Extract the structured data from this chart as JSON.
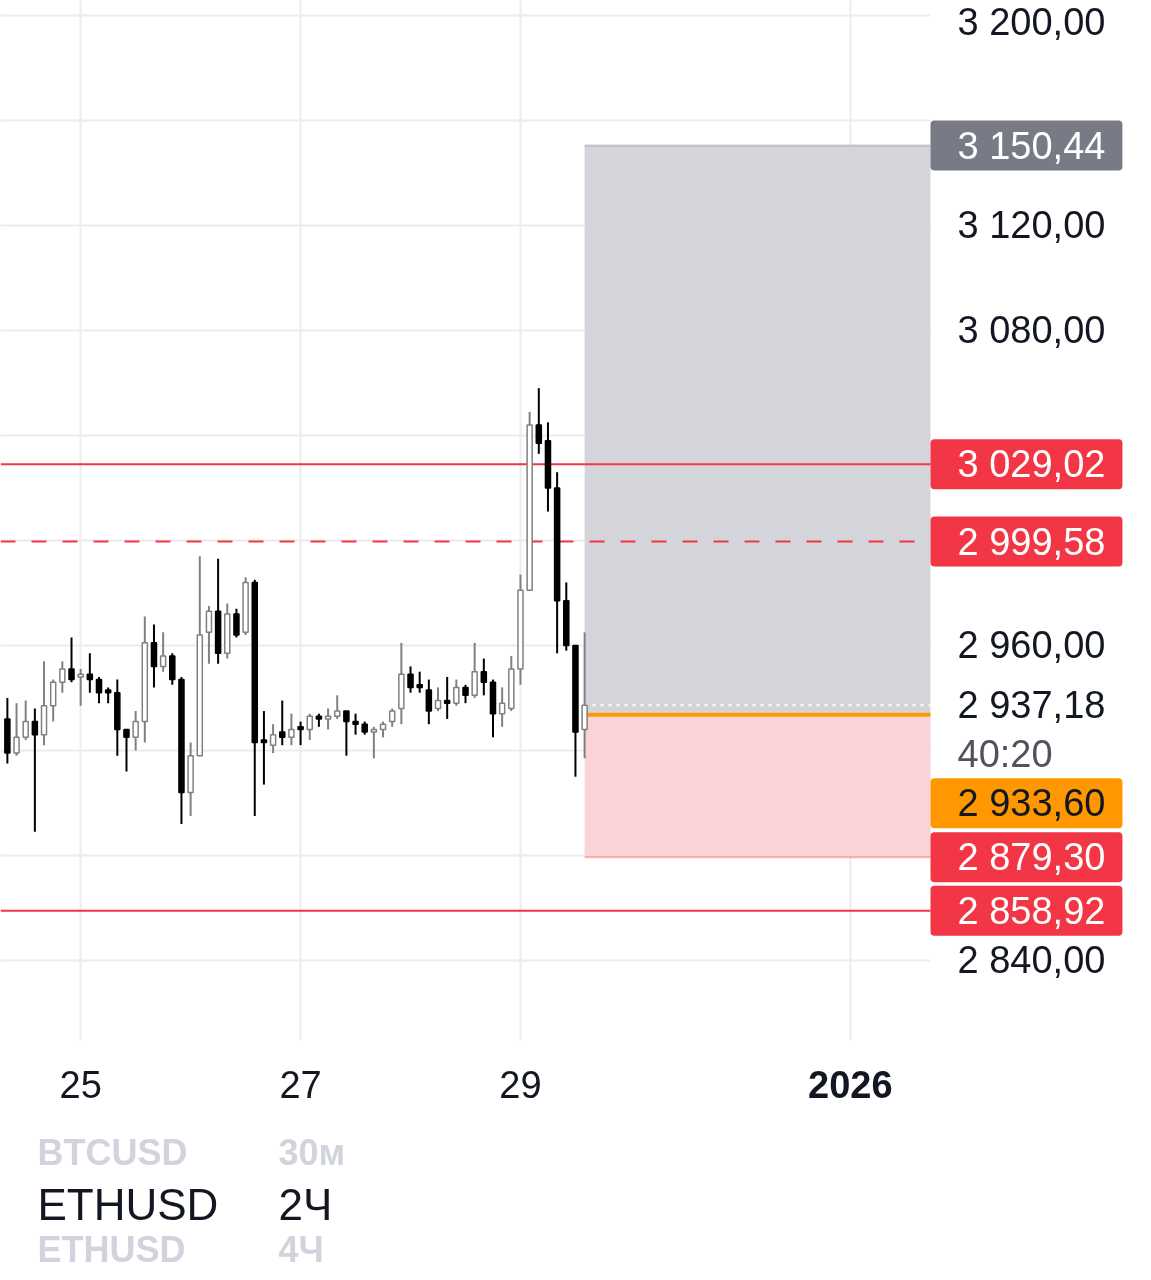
{
  "chart_data": {
    "type": "candlestick",
    "title": "ETHUSD",
    "subtitle": "2Ч",
    "xlim": [
      "2025-12-24T06:30",
      "2026-01-01T17:30"
    ],
    "ylim": [
      2809.5,
      3205.7
    ],
    "xticks": [
      {
        "value": "2025-12-25",
        "label": "25"
      },
      {
        "value": "2025-12-27",
        "label": "27"
      },
      {
        "value": "2025-12-29",
        "label": "29"
      },
      {
        "value": "2026-01-01",
        "label": "2026"
      }
    ],
    "yticks": [
      {
        "value": 3200,
        "label": "3 200,00"
      },
      {
        "value": 3160,
        "label": null
      },
      {
        "value": 3120,
        "label": "3 120,00"
      },
      {
        "value": 3080,
        "label": "3 080,00"
      },
      {
        "value": 3040,
        "label": null
      },
      {
        "value": 3000,
        "label": null
      },
      {
        "value": 2960,
        "label": "2 960,00"
      },
      {
        "value": 2920,
        "label": null
      },
      {
        "value": 2880,
        "label": null
      },
      {
        "value": 2840,
        "label": "2 840,00"
      }
    ],
    "grid": true,
    "x": [
      "2025-12-24T08:00",
      "2025-12-24T10:00",
      "2025-12-24T12:00",
      "2025-12-24T14:00",
      "2025-12-24T16:00",
      "2025-12-24T18:00",
      "2025-12-24T20:00",
      "2025-12-24T22:00",
      "2025-12-25T00:00",
      "2025-12-25T02:00",
      "2025-12-25T04:00",
      "2025-12-25T06:00",
      "2025-12-25T08:00",
      "2025-12-25T10:00",
      "2025-12-25T12:00",
      "2025-12-25T14:00",
      "2025-12-25T16:00",
      "2025-12-25T18:00",
      "2025-12-25T20:00",
      "2025-12-25T22:00",
      "2025-12-26T00:00",
      "2025-12-26T02:00",
      "2025-12-26T04:00",
      "2025-12-26T06:00",
      "2025-12-26T08:00",
      "2025-12-26T10:00",
      "2025-12-26T12:00",
      "2025-12-26T14:00",
      "2025-12-26T16:00",
      "2025-12-26T18:00",
      "2025-12-26T20:00",
      "2025-12-26T22:00",
      "2025-12-27T00:00",
      "2025-12-27T02:00",
      "2025-12-27T04:00",
      "2025-12-27T06:00",
      "2025-12-27T08:00",
      "2025-12-27T10:00",
      "2025-12-27T12:00",
      "2025-12-27T14:00",
      "2025-12-27T16:00",
      "2025-12-27T18:00",
      "2025-12-27T20:00",
      "2025-12-27T22:00",
      "2025-12-28T00:00",
      "2025-12-28T02:00",
      "2025-12-28T04:00",
      "2025-12-28T06:00",
      "2025-12-28T08:00",
      "2025-12-28T10:00",
      "2025-12-28T12:00",
      "2025-12-28T14:00",
      "2025-12-28T16:00",
      "2025-12-28T18:00",
      "2025-12-28T20:00",
      "2025-12-28T22:00",
      "2025-12-29T00:00",
      "2025-12-29T02:00",
      "2025-12-29T04:00",
      "2025-12-29T06:00",
      "2025-12-29T08:00",
      "2025-12-29T10:00",
      "2025-12-29T12:00",
      "2025-12-29T14:00"
    ],
    "ohlc": [
      [
        2932,
        2940,
        2915,
        2919
      ],
      [
        2919,
        2938,
        2918,
        2925
      ],
      [
        2925,
        2939,
        2924,
        2931
      ],
      [
        2931,
        2936,
        2889,
        2926
      ],
      [
        2926,
        2954,
        2922,
        2937
      ],
      [
        2937,
        2947,
        2931,
        2946
      ],
      [
        2946,
        2954,
        2942,
        2951
      ],
      [
        2951,
        2963,
        2946,
        2947
      ],
      [
        2948,
        2951,
        2937,
        2949
      ],
      [
        2949,
        2957,
        2942,
        2947
      ],
      [
        2947,
        2948,
        2938,
        2942
      ],
      [
        2943,
        2944,
        2938,
        2942
      ],
      [
        2942,
        2947,
        2918,
        2928
      ],
      [
        2928,
        2928,
        2912,
        2925
      ],
      [
        2925,
        2935,
        2920,
        2931
      ],
      [
        2931,
        2971,
        2923,
        2961
      ],
      [
        2961,
        2968,
        2944,
        2952
      ],
      [
        2952,
        2965,
        2950,
        2956
      ],
      [
        2956,
        2957,
        2945,
        2947
      ],
      [
        2947,
        2948,
        2892,
        2904
      ],
      [
        2904,
        2923,
        2895,
        2918
      ],
      [
        2918,
        2994,
        2918,
        2964
      ],
      [
        2965,
        2975,
        2953,
        2973
      ],
      [
        2973,
        2993,
        2953,
        2957
      ],
      [
        2957,
        2976,
        2955,
        2972
      ],
      [
        2972,
        2974,
        2963,
        2964
      ],
      [
        2965,
        2986,
        2964,
        2984
      ],
      [
        2984,
        2985,
        2895,
        2923
      ],
      [
        2924,
        2935,
        2907,
        2923
      ],
      [
        2922,
        2930,
        2919,
        2926
      ],
      [
        2927,
        2939,
        2922,
        2925
      ],
      [
        2925,
        2934,
        2922,
        2928
      ],
      [
        2929,
        2931,
        2922,
        2928
      ],
      [
        2928,
        2934,
        2924,
        2933
      ],
      [
        2933,
        2934,
        2929,
        2932
      ],
      [
        2932,
        2936,
        2928,
        2933
      ],
      [
        2933,
        2941,
        2932,
        2935
      ],
      [
        2935,
        2935,
        2918,
        2931
      ],
      [
        2931,
        2934,
        2926,
        2930
      ],
      [
        2930,
        2931,
        2926,
        2927
      ],
      [
        2927,
        2929,
        2917,
        2928
      ],
      [
        2928,
        2931,
        2925,
        2930
      ],
      [
        2931,
        2936,
        2929,
        2935
      ],
      [
        2936,
        2961,
        2930,
        2949
      ],
      [
        2949,
        2952,
        2942,
        2944
      ],
      [
        2945,
        2950,
        2942,
        2944
      ],
      [
        2943,
        2947,
        2930,
        2935
      ],
      [
        2936,
        2944,
        2935,
        2939
      ],
      [
        2939,
        2948,
        2932,
        2938
      ],
      [
        2938,
        2947,
        2937,
        2944
      ],
      [
        2944,
        2945,
        2938,
        2941
      ],
      [
        2941,
        2961,
        2940,
        2950
      ],
      [
        2950,
        2955,
        2941,
        2946
      ],
      [
        2946,
        2947,
        2925,
        2934
      ],
      [
        2934,
        2944,
        2929,
        2938
      ],
      [
        2936,
        2956,
        2935,
        2951
      ],
      [
        2951,
        2987,
        2945,
        2981
      ],
      [
        2981,
        3049,
        2981,
        3044
      ],
      [
        3044,
        3058,
        3033,
        3037
      ],
      [
        3038,
        3045,
        3011,
        3020
      ],
      [
        3020,
        3026,
        2957,
        2977
      ],
      [
        2977,
        2984,
        2958,
        2960
      ],
      [
        2960,
        2960,
        2910,
        2927
      ],
      [
        2928,
        2965,
        2917,
        2937.18
      ]
    ],
    "colors": [
      "#000000",
      "#808080",
      "#808080",
      "#000000",
      "#808080",
      "#808080",
      "#808080",
      "#000000",
      "#808080",
      "#000000",
      "#000000",
      "#000000",
      "#000000",
      "#000000",
      "#808080",
      "#808080",
      "#000000",
      "#808080",
      "#000000",
      "#000000",
      "#808080",
      "#808080",
      "#808080",
      "#000000",
      "#808080",
      "#000000",
      "#808080",
      "#000000",
      "#000000",
      "#808080",
      "#000000",
      "#808080",
      "#000000",
      "#808080",
      "#000000",
      "#808080",
      "#808080",
      "#000000",
      "#000000",
      "#000000",
      "#808080",
      "#808080",
      "#808080",
      "#808080",
      "#000000",
      "#000000",
      "#000000",
      "#808080",
      "#000000",
      "#808080",
      "#000000",
      "#808080",
      "#000000",
      "#000000",
      "#808080",
      "#808080",
      "#808080",
      "#808080",
      "#000000",
      "#000000",
      "#000000",
      "#000000",
      "#000000",
      "#808080"
    ],
    "bands": [
      {
        "axis": "y",
        "from": 2933.6,
        "to": 3150.44,
        "color": "#d3d5da"
      },
      {
        "axis": "y",
        "from": 2879.3,
        "to": 2933.6,
        "color": "#f9d3d8"
      }
    ],
    "ref_lines": [
      {
        "axis": "y",
        "value": 3150.44,
        "label": "3 150,44",
        "color": "#787b86"
      },
      {
        "axis": "y",
        "value": 3029.02,
        "label": "3 029,02",
        "color": "#f23645",
        "line_style": "solid"
      },
      {
        "axis": "y",
        "value": 2999.58,
        "label": "2 999,58",
        "color": "#f23645",
        "line_style": "dashed"
      },
      {
        "axis": "y",
        "value": 2937.18,
        "label": "2 937,18",
        "color": "#ffffff",
        "line_style": "dotted"
      },
      {
        "axis": "y",
        "value": 2933.6,
        "label": "2 933,60",
        "color": "#ff9800",
        "line_style": "solid"
      },
      {
        "axis": "y",
        "value": 2879.3,
        "label": "2 879,30",
        "color": "#f23645"
      },
      {
        "axis": "y",
        "value": 2858.92,
        "label": "2 858,92",
        "color": "#f23645",
        "line_style": "solid"
      }
    ],
    "annotations": [
      "40:20",
      "BTCUSD",
      "30м",
      "ETHUSD",
      "4Ч"
    ]
  }
}
